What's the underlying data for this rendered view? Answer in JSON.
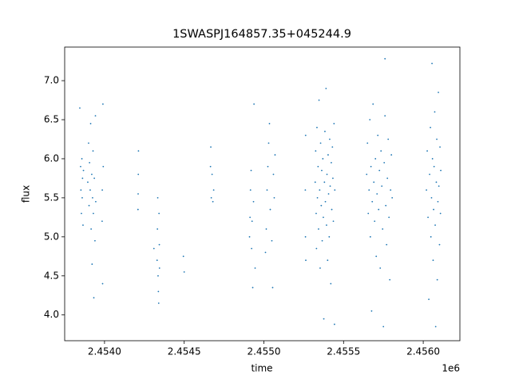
{
  "chart_data": {
    "type": "scatter",
    "title": "1SWASPJ164857.35+045244.9",
    "x_label": "time",
    "y_label": "flux",
    "x_offset_label": "1e6",
    "color": "#1f77b4",
    "x": [
      2453845,
      2453850,
      2453852,
      2453855,
      2453858,
      2453860,
      2453862,
      2453865,
      2453868,
      2453895,
      2453900,
      2453903,
      2453906,
      2453910,
      2453913,
      2453916,
      2453920,
      2453922,
      2453925,
      2453928,
      2453930,
      2453933,
      2453936,
      2453940,
      2453943,
      2453945,
      2453985,
      2453986,
      2453988,
      2453990,
      2453992,
      2454210,
      2454211,
      2454212,
      2454213,
      2454310,
      2454330,
      2454332,
      2454334,
      2454336,
      2454338,
      2454340,
      2454342,
      2454344,
      2454345,
      2454495,
      2454500,
      2454665,
      2454667,
      2454670,
      2454675,
      2454680,
      2454685,
      2454910,
      2454913,
      2454916,
      2454920,
      2454923,
      2454926,
      2454930,
      2454935,
      2454938,
      2454945,
      2455010,
      2455015,
      2455020,
      2455025,
      2455030,
      2455035,
      2455040,
      2455050,
      2455055,
      2455060,
      2455065,
      2455070,
      2455260,
      2455261,
      2455262,
      2455263,
      2455322,
      2455325,
      2455328,
      2455330,
      2455333,
      2455336,
      2455340,
      2455343,
      2455346,
      2455350,
      2455353,
      2455356,
      2455360,
      2455363,
      2455366,
      2455370,
      2455373,
      2455376,
      2455380,
      2455383,
      2455386,
      2455390,
      2455393,
      2455396,
      2455400,
      2455403,
      2455406,
      2455410,
      2455413,
      2455416,
      2455420,
      2455423,
      2455426,
      2455430,
      2455433,
      2455436,
      2455440,
      2455443,
      2455445,
      2455645,
      2455650,
      2455655,
      2455660,
      2455665,
      2455668,
      2455672,
      2455676,
      2455680,
      2455685,
      2455690,
      2455695,
      2455700,
      2455705,
      2455710,
      2455715,
      2455720,
      2455725,
      2455730,
      2455735,
      2455740,
      2455745,
      2455750,
      2455755,
      2455760,
      2455765,
      2455770,
      2455775,
      2455780,
      2455785,
      2455790,
      2455795,
      2455800,
      2455805,
      2455760,
      2456020,
      2456025,
      2456030,
      2456035,
      2456040,
      2456045,
      2456048,
      2456052,
      2456055,
      2456058,
      2456062,
      2456065,
      2456068,
      2456072,
      2456075,
      2456078,
      2456082,
      2456085,
      2456088,
      2456092,
      2456095,
      2456098,
      2456102,
      2456105,
      2456108,
      2456110
    ],
    "values": [
      6.65,
      5.9,
      5.6,
      5.3,
      6.0,
      5.5,
      5.75,
      5.15,
      5.85,
      5.7,
      6.2,
      5.4,
      5.95,
      5.6,
      6.45,
      5.1,
      5.8,
      4.65,
      5.5,
      6.1,
      5.3,
      4.22,
      5.75,
      4.95,
      6.55,
      5.45,
      5.2,
      5.6,
      4.4,
      6.7,
      5.9,
      5.35,
      5.55,
      5.8,
      6.1,
      4.85,
      4.7,
      5.1,
      5.5,
      4.5,
      4.3,
      4.15,
      5.3,
      4.9,
      4.6,
      4.75,
      4.55,
      5.9,
      6.15,
      5.5,
      5.8,
      5.45,
      5.6,
      5.0,
      5.25,
      5.6,
      5.85,
      4.85,
      5.2,
      4.35,
      5.45,
      6.7,
      4.6,
      4.8,
      5.1,
      5.6,
      5.9,
      6.2,
      6.45,
      5.35,
      4.95,
      4.35,
      5.8,
      5.5,
      6.05,
      5.6,
      5.0,
      6.3,
      4.7,
      5.7,
      6.1,
      5.3,
      4.85,
      6.4,
      5.5,
      5.9,
      5.1,
      6.75,
      5.6,
      4.6,
      6.2,
      5.4,
      5.85,
      4.95,
      6.0,
      5.25,
      3.95,
      5.7,
      6.35,
      5.45,
      6.9,
      5.15,
      5.8,
      4.7,
      6.05,
      5.55,
      5.0,
      6.25,
      5.65,
      4.4,
      5.95,
      5.35,
      6.15,
      5.75,
      5.2,
      6.45,
      3.88,
      5.6,
      5.8,
      6.2,
      5.3,
      5.6,
      6.5,
      5.0,
      5.9,
      4.05,
      5.45,
      6.7,
      5.7,
      5.2,
      6.0,
      4.75,
      5.55,
      6.3,
      5.35,
      5.85,
      4.6,
      6.1,
      5.65,
      5.1,
      3.85,
      5.95,
      6.55,
      5.4,
      4.9,
      5.75,
      6.25,
      5.25,
      4.45,
      5.6,
      6.05,
      5.5,
      7.28,
      5.6,
      6.1,
      5.25,
      4.2,
      5.8,
      6.4,
      5.0,
      5.5,
      7.22,
      6.0,
      4.7,
      5.35,
      5.9,
      6.6,
      5.15,
      3.85,
      5.7,
      6.25,
      4.45,
      5.45,
      6.85,
      5.65,
      4.9,
      6.15,
      5.3,
      5.85
    ],
    "xlim": [
      2453750,
      2456230
    ],
    "xticks": [
      {
        "value": 2454000,
        "label": "2.4540"
      },
      {
        "value": 2454500,
        "label": "2.4545"
      },
      {
        "value": 2455000,
        "label": "2.4550"
      },
      {
        "value": 2455500,
        "label": "2.4555"
      },
      {
        "value": 2456000,
        "label": "2.4560"
      }
    ],
    "ylim": [
      3.67,
      7.43
    ],
    "yticks": [
      {
        "value": 4,
        "label": "4.0"
      },
      4.5,
      {
        "value": 5,
        "label": "5.0"
      },
      5.5,
      {
        "value": 6,
        "label": "6.0"
      },
      6.5,
      {
        "value": 7,
        "label": "7.0"
      }
    ]
  }
}
